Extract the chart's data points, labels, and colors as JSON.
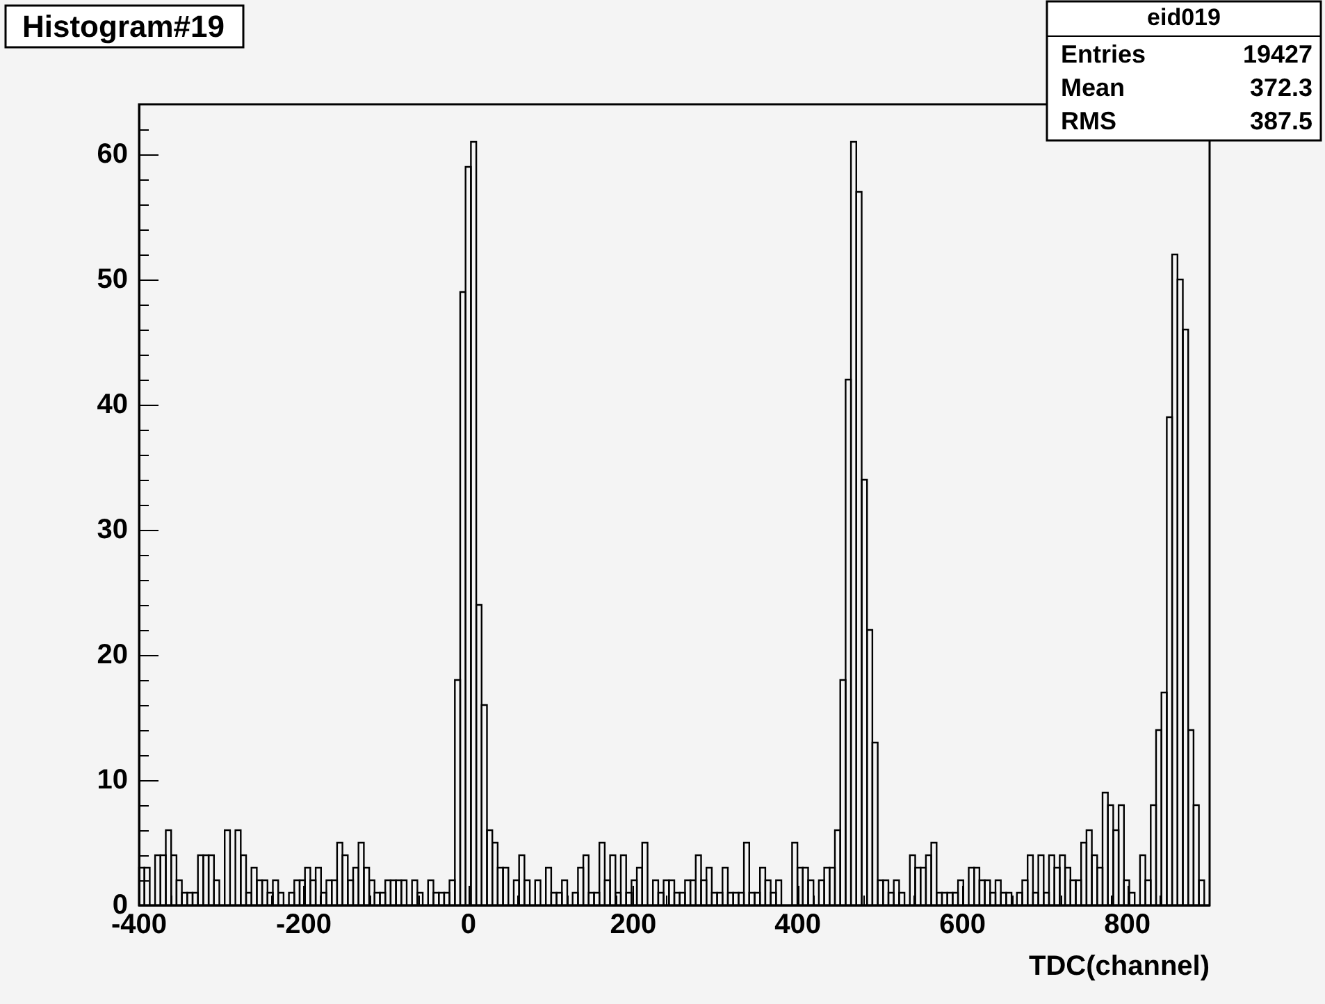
{
  "chart_data": {
    "type": "histogram",
    "title": "Histogram#19",
    "xlabel": "TDC(channel)",
    "annotations": [
      "eid019",
      "Entries",
      "19427",
      "Mean",
      "372.3",
      "RMS",
      "387.5"
    ],
    "color": "#000000",
    "bins": [
      -400,
      -393.5,
      -387,
      -380.5,
      -374,
      -367.5,
      -361,
      -354.5,
      -348,
      -341.5,
      -335,
      -328.5,
      -322,
      -315.5,
      -309,
      -302.5,
      -296,
      -289.5,
      -283,
      -276.5,
      -270,
      -263.5,
      -257,
      -250.5,
      -244,
      -237.5,
      -231,
      -224.5,
      -218,
      -211.5,
      -205,
      -198.5,
      -192,
      -185.5,
      -179,
      -172.5,
      -166,
      -159.5,
      -153,
      -146.5,
      -140,
      -133.5,
      -127,
      -120.5,
      -114,
      -107.5,
      -101,
      -94.5,
      -88,
      -81.5,
      -75,
      -68.5,
      -62,
      -55.5,
      -49,
      -42.5,
      -36,
      -29.5,
      -23,
      -16.5,
      -10,
      -3.5,
      3,
      9.5,
      16,
      22.5,
      29,
      35.5,
      42,
      48.5,
      55,
      61.5,
      68,
      74.5,
      81,
      87.5,
      94,
      100.5,
      107,
      113.5,
      120,
      126.5,
      133,
      139.5,
      146,
      152.5,
      159,
      165.5,
      172,
      178.5,
      185,
      191.5,
      198,
      204.5,
      211,
      217.5,
      224,
      230.5,
      237,
      243.5,
      250,
      256.5,
      263,
      269.5,
      276,
      282.5,
      289,
      295.5,
      302,
      308.5,
      315,
      321.5,
      328,
      334.5,
      341,
      347.5,
      354,
      360.5,
      367,
      373.5,
      380,
      386.5,
      393,
      399.5,
      406,
      412.5,
      419,
      425.5,
      432,
      438.5,
      445,
      451.5,
      458,
      464.5,
      471,
      477.5,
      484,
      490.5,
      497,
      503.5,
      510,
      516.5,
      523,
      529.5,
      536,
      542.5,
      549,
      555.5,
      562,
      568.5,
      575,
      581.5,
      588,
      594.5,
      601,
      607.5,
      614,
      620.5,
      627,
      633.5,
      640,
      646.5,
      653,
      659.5,
      666,
      672.5,
      679,
      685.5,
      692,
      698.5,
      705,
      711.5,
      718,
      724.5,
      731,
      737.5,
      744,
      750.5,
      757,
      763.5,
      770,
      776.5,
      783,
      789.5,
      796,
      802.5,
      809,
      815.5,
      822,
      828.5,
      835,
      841.5,
      848,
      854.5,
      861,
      867.5,
      874,
      880.5,
      887,
      893.5,
      900
    ],
    "values": [
      3,
      3,
      0,
      4,
      4,
      6,
      4,
      2,
      1,
      1,
      1,
      4,
      4,
      4,
      2,
      0,
      6,
      0,
      6,
      4,
      1,
      3,
      2,
      2,
      1,
      2,
      1,
      0,
      1,
      2,
      2,
      3,
      2,
      3,
      1,
      2,
      2,
      5,
      4,
      2,
      3,
      5,
      3,
      2,
      1,
      1,
      2,
      2,
      2,
      2,
      0,
      2,
      1,
      0,
      2,
      1,
      1,
      1,
      2,
      18,
      49,
      59,
      61,
      24,
      16,
      6,
      5,
      3,
      3,
      0,
      2,
      4,
      2,
      0,
      2,
      0,
      3,
      1,
      1,
      2,
      0,
      1,
      3,
      4,
      1,
      1,
      5,
      2,
      4,
      1,
      4,
      1,
      2,
      3,
      5,
      0,
      2,
      1,
      2,
      2,
      1,
      1,
      2,
      2,
      4,
      2,
      3,
      1,
      1,
      3,
      1,
      1,
      1,
      5,
      1,
      1,
      3,
      2,
      1,
      2,
      0,
      0,
      5,
      3,
      3,
      2,
      0,
      2,
      3,
      3,
      6,
      18,
      42,
      61,
      57,
      34,
      22,
      13,
      2,
      2,
      1,
      2,
      1,
      0,
      4,
      3,
      3,
      4,
      5,
      1,
      1,
      1,
      1,
      2,
      0,
      3,
      3,
      2,
      2,
      1,
      2,
      1,
      1,
      0,
      1,
      2,
      4,
      1,
      4,
      1,
      4,
      3,
      4,
      3,
      2,
      2,
      5,
      6,
      4,
      3,
      9,
      8,
      6,
      8,
      2,
      1,
      0,
      4,
      2,
      8,
      14,
      17,
      39,
      52,
      50,
      46,
      14,
      8,
      2,
      0
    ],
    "xlim": [
      -400,
      900
    ],
    "xticks": [
      -400,
      -200,
      0,
      200,
      400,
      600,
      800
    ],
    "ylim": [
      0,
      64
    ],
    "yticks": [
      0,
      10,
      20,
      30,
      40,
      50,
      60
    ]
  }
}
